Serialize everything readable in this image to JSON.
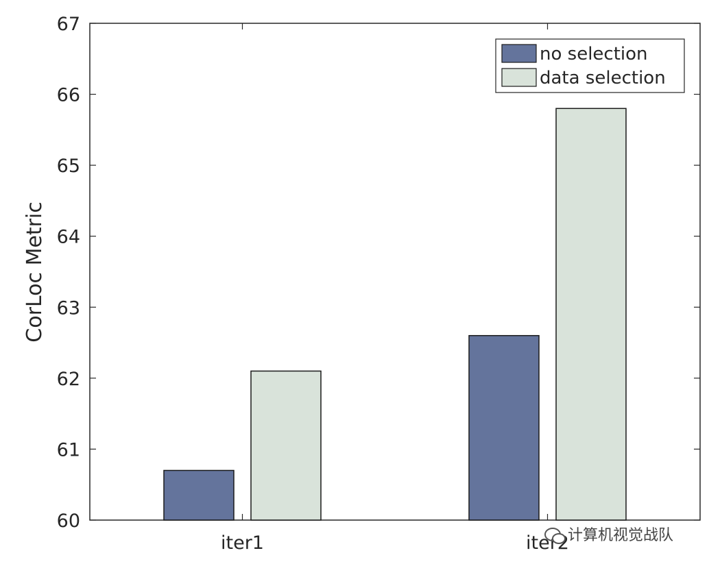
{
  "chart_data": {
    "type": "bar",
    "categories": [
      "iter1",
      "iter2"
    ],
    "series": [
      {
        "name": "no selection",
        "values": [
          60.7,
          62.6
        ],
        "color": "#64749c"
      },
      {
        "name": "data selection",
        "values": [
          62.1,
          65.8
        ],
        "color": "#d9e3da"
      }
    ],
    "xlabel": "",
    "ylabel": "CorLoc Metric",
    "ylim": [
      60,
      67
    ],
    "yticks": [
      "60",
      "61",
      "62",
      "63",
      "64",
      "65",
      "66",
      "67"
    ],
    "grid": false,
    "legend_position": "top-right",
    "watermark": "计算机视觉战队",
    "watermark_icon": "wechat-icon"
  }
}
